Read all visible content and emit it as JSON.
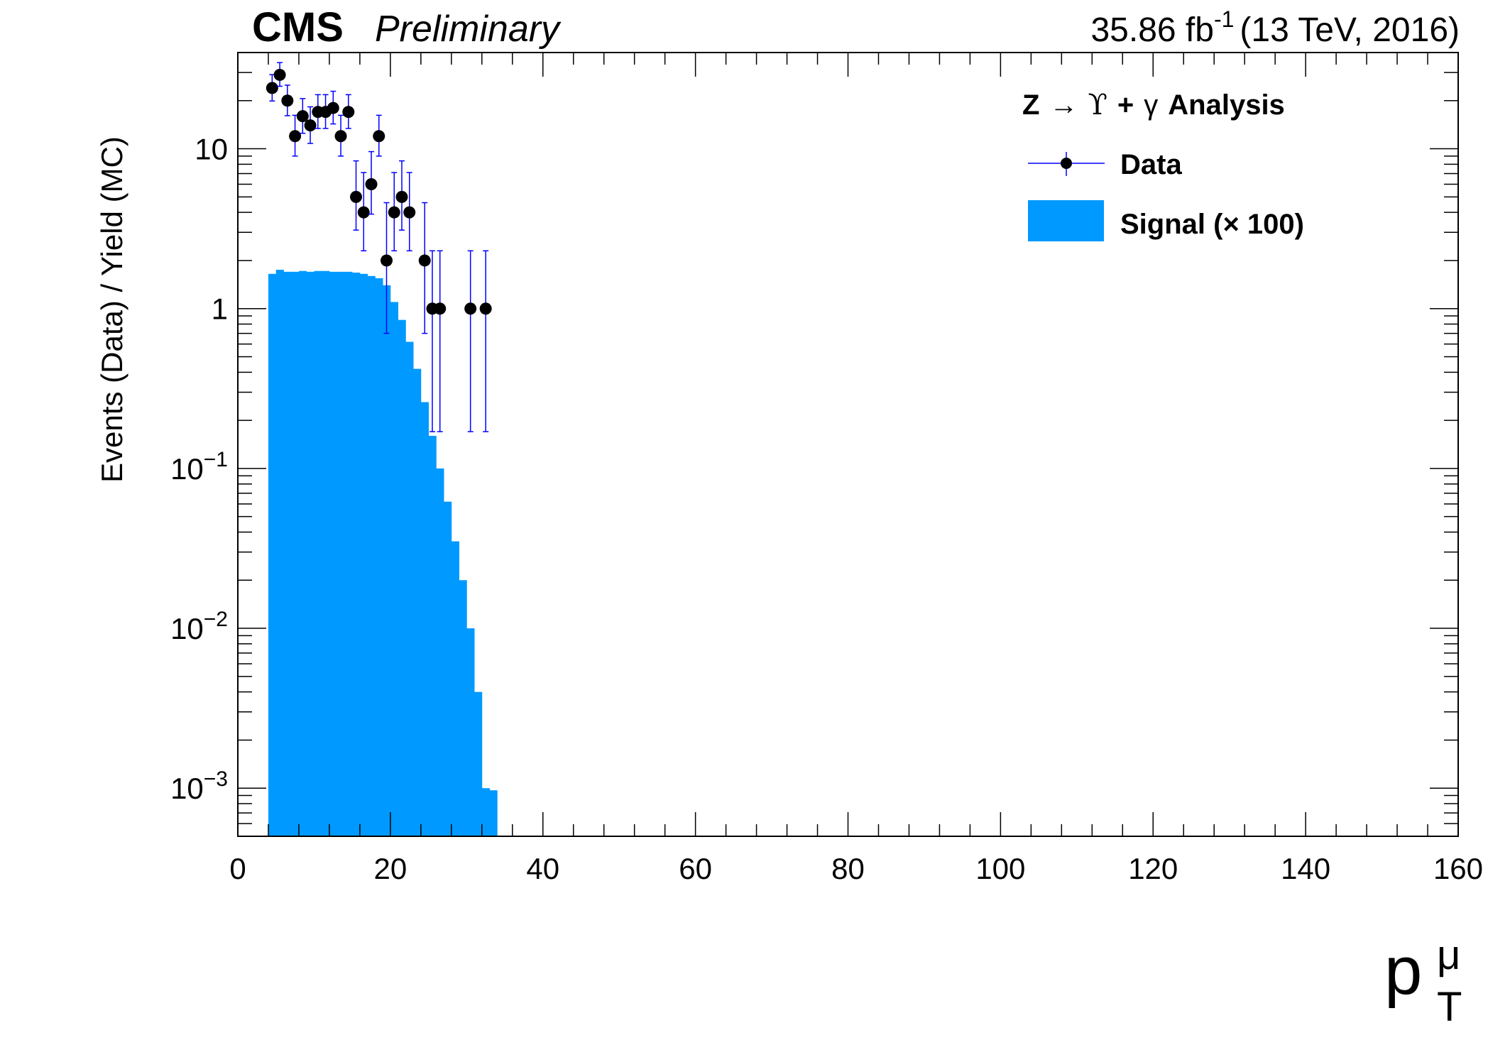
{
  "header": {
    "experiment": "CMS",
    "status": "Preliminary",
    "lumi_value": "35.86 fb",
    "lumi_exponent": "-1",
    "energy": "(13 TeV, 2016)"
  },
  "legend": {
    "title_prefix": "Z",
    "title_arrow": "→",
    "title_upsilon": "ϒ",
    "title_plus": "+",
    "title_gamma": "γ",
    "title_suffix": "Analysis",
    "data_label": "Data",
    "signal_label": "Signal (× 100)"
  },
  "axes": {
    "ylabel": "Events (Data) / Yield (MC)",
    "xlabel_base": "p",
    "xlabel_sup": "μ",
    "xlabel_sub": "T",
    "x_ticks": [
      "0",
      "20",
      "40",
      "60",
      "80",
      "100",
      "120",
      "140",
      "160"
    ],
    "y_ticks": [
      {
        "mantissa": "10",
        "exp": "−3"
      },
      {
        "mantissa": "10",
        "exp": "−2"
      },
      {
        "mantissa": "10",
        "exp": "−1"
      },
      {
        "mantissa": "1",
        "exp": ""
      },
      {
        "mantissa": "10",
        "exp": ""
      }
    ]
  },
  "colors": {
    "signal": "#0099ff",
    "data_marker": "#000000",
    "error_bar": "#0000ff"
  },
  "chart_data": {
    "type": "bar",
    "title": "",
    "xlabel": "p_T^μ",
    "ylabel": "Events (Data) / Yield (MC)",
    "xlim": [
      0,
      160
    ],
    "ylim": [
      0.0005,
      40
    ],
    "yscale": "log",
    "legend_position": "top-right",
    "series": [
      {
        "name": "Signal (× 100)",
        "type": "histogram",
        "bin_width": 1,
        "bin_low_edges": [
          4,
          5,
          6,
          7,
          8,
          9,
          10,
          11,
          12,
          13,
          14,
          15,
          16,
          17,
          18,
          19,
          20,
          21,
          22,
          23,
          24,
          25,
          26,
          27,
          28,
          29,
          30,
          31,
          32,
          33
        ],
        "values": [
          1.65,
          1.75,
          1.7,
          1.7,
          1.72,
          1.7,
          1.72,
          1.72,
          1.7,
          1.7,
          1.7,
          1.68,
          1.65,
          1.6,
          1.55,
          1.4,
          1.1,
          0.85,
          0.62,
          0.42,
          0.26,
          0.16,
          0.1,
          0.062,
          0.035,
          0.02,
          0.01,
          0.004,
          0.001,
          0.00097
        ]
      },
      {
        "name": "Data",
        "type": "points",
        "x": [
          4.5,
          5.5,
          6.5,
          7.5,
          8.5,
          9.5,
          10.5,
          11.5,
          12.5,
          13.5,
          14.5,
          15.5,
          16.5,
          17.5,
          18.5,
          19.5,
          20.5,
          21.5,
          22.5,
          24.5,
          25.5,
          26.5,
          30.5,
          32.5
        ],
        "y": [
          24,
          29,
          20,
          12,
          16,
          14,
          17,
          17,
          18,
          12,
          17,
          5,
          4,
          6,
          12,
          2,
          4,
          5,
          4,
          2,
          1,
          1,
          1,
          1
        ],
        "y_err_low": [
          4.1,
          4.4,
          3.9,
          3.0,
          3.5,
          3.2,
          3.6,
          3.6,
          3.7,
          3.0,
          3.6,
          1.9,
          1.7,
          2.1,
          3.0,
          1.3,
          1.7,
          1.9,
          1.7,
          1.3,
          0.83,
          0.83,
          0.83,
          0.83
        ],
        "y_err_high": [
          5.1,
          5.6,
          5.0,
          4.2,
          4.6,
          4.3,
          4.8,
          4.8,
          4.9,
          4.2,
          4.8,
          3.4,
          3.1,
          3.6,
          4.2,
          2.6,
          3.1,
          3.4,
          3.1,
          2.6,
          1.3,
          1.3,
          1.3,
          1.3
        ]
      }
    ]
  }
}
